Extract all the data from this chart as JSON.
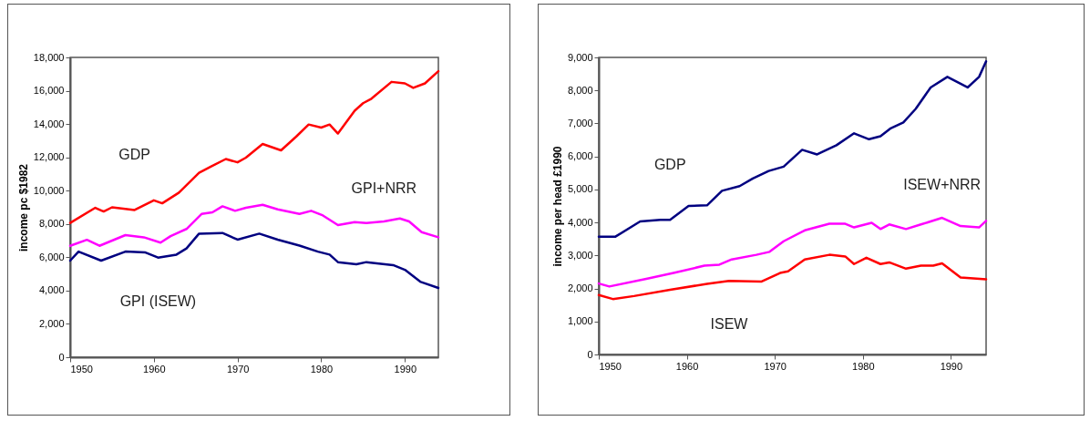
{
  "chart_data": [
    {
      "type": "line",
      "ylabel": "income pc $1982",
      "xlim": [
        1950,
        1994
      ],
      "xticks": [
        1950,
        1960,
        1970,
        1980,
        1990
      ],
      "ylim": [
        0,
        18000
      ],
      "yticks": [
        0,
        {
          "value": 2000,
          "label": "2,000"
        },
        {
          "value": 4000,
          "label": "4,000"
        },
        {
          "value": 6000,
          "label": "6,000"
        },
        {
          "value": 8000,
          "label": "8,000"
        },
        {
          "value": 10000,
          "label": "10,000"
        },
        {
          "value": 12000,
          "label": "12,000"
        },
        {
          "value": 14000,
          "label": "14,000"
        },
        {
          "value": 16000,
          "label": "16,000"
        },
        {
          "value": 18000,
          "label": "18,000"
        }
      ],
      "grid": false,
      "legend": false,
      "series": [
        {
          "name": "GDP",
          "color": "#ff0000",
          "x": [
            1950,
            1953,
            1954,
            1955,
            1957.7,
            1960,
            1961,
            1963,
            1965.4,
            1966.8,
            1968.6,
            1970,
            1971,
            1973,
            1975.2,
            1977,
            1978.5,
            1980,
            1981,
            1982,
            1984,
            1985,
            1986,
            1988.4,
            1990,
            1991,
            1992.4,
            1994
          ],
          "values": [
            8060,
            8970,
            8750,
            9000,
            8840,
            9420,
            9240,
            9880,
            11070,
            11440,
            11900,
            11700,
            11980,
            12800,
            12420,
            13240,
            13970,
            13790,
            13970,
            13430,
            14800,
            15250,
            15520,
            16530,
            16440,
            16170,
            16440,
            17170
          ]
        },
        {
          "name": "GPI+NRR",
          "color": "#ff00ff",
          "x": [
            1950,
            1952,
            1953.5,
            1956.6,
            1958.8,
            1960.8,
            1962,
            1963.9,
            1965.7,
            1967,
            1968.2,
            1969.7,
            1971,
            1973,
            1974.8,
            1977.4,
            1978.8,
            1980.2,
            1982,
            1984,
            1985.4,
            1987.5,
            1989.4,
            1990.5,
            1992,
            1994
          ],
          "values": [
            6690,
            7050,
            6690,
            7330,
            7200,
            6880,
            7270,
            7700,
            8600,
            8700,
            9060,
            8790,
            8970,
            9150,
            8880,
            8600,
            8790,
            8510,
            7930,
            8110,
            8060,
            8150,
            8330,
            8150,
            7510,
            7200
          ]
        },
        {
          "name": "GPI (ISEW)",
          "color": "#000080",
          "x": [
            1950,
            1951,
            1953.7,
            1956.6,
            1959,
            1960.5,
            1962.7,
            1963.9,
            1965.4,
            1968.2,
            1970,
            1972.6,
            1974.8,
            1977.4,
            1979.6,
            1981,
            1982,
            1984.2,
            1985.4,
            1988.6,
            1990,
            1991.9,
            1994
          ],
          "values": [
            5800,
            6340,
            5800,
            6340,
            6290,
            5980,
            6160,
            6530,
            7420,
            7460,
            7060,
            7420,
            7060,
            6700,
            6340,
            6160,
            5710,
            5580,
            5710,
            5530,
            5250,
            4520,
            4160
          ]
        }
      ]
    },
    {
      "type": "line",
      "ylabel": "income per head £1990",
      "xlim": [
        1950,
        1994
      ],
      "xticks": [
        1950,
        1960,
        1970,
        1980,
        1990
      ],
      "ylim": [
        0,
        9000
      ],
      "yticks": [
        0,
        {
          "value": 1000,
          "label": "1,000"
        },
        {
          "value": 2000,
          "label": "2,000"
        },
        {
          "value": 3000,
          "label": "3,000"
        },
        {
          "value": 4000,
          "label": "4,000"
        },
        {
          "value": 5000,
          "label": "5,000"
        },
        {
          "value": 6000,
          "label": "6,000"
        },
        {
          "value": 7000,
          "label": "7,000"
        },
        {
          "value": 8000,
          "label": "8,000"
        },
        {
          "value": 9000,
          "label": "9,000"
        }
      ],
      "grid": false,
      "legend": false,
      "series": [
        {
          "name": "GDP",
          "color": "#000080",
          "x": [
            1950,
            1951.9,
            1954.7,
            1957,
            1958.1,
            1960.2,
            1962.3,
            1964,
            1966,
            1967.5,
            1969.3,
            1971,
            1973.1,
            1974.8,
            1977,
            1979,
            1980.7,
            1982,
            1983.1,
            1984.6,
            1986,
            1987.7,
            1989.6,
            1991.9,
            1993.2,
            1994
          ],
          "values": [
            3570,
            3570,
            4030,
            4080,
            4080,
            4500,
            4520,
            4960,
            5100,
            5330,
            5560,
            5690,
            6200,
            6060,
            6340,
            6700,
            6520,
            6610,
            6840,
            7030,
            7440,
            8090,
            8410,
            8090,
            8410,
            8880
          ]
        },
        {
          "name": "ISEW+NRR",
          "color": "#ff00ff",
          "x": [
            1950,
            1951.2,
            1955.4,
            1958.5,
            1962,
            1963.7,
            1965.1,
            1967.9,
            1969.4,
            1971,
            1973.4,
            1976.2,
            1978,
            1979,
            1981,
            1982,
            1983,
            1984.9,
            1986.6,
            1989,
            1991.1,
            1993.2,
            1994
          ],
          "values": [
            2150,
            2060,
            2290,
            2470,
            2690,
            2720,
            2880,
            3020,
            3110,
            3430,
            3760,
            3960,
            3960,
            3850,
            3990,
            3800,
            3940,
            3800,
            3940,
            4140,
            3890,
            3850,
            4050
          ]
        },
        {
          "name": "ISEW",
          "color": "#ff0000",
          "x": [
            1950,
            1951.6,
            1954,
            1958.1,
            1962.3,
            1964.8,
            1968.5,
            1970.6,
            1971.5,
            1973.4,
            1976.2,
            1978,
            1979,
            1980.4,
            1982,
            1983,
            1984.9,
            1986.6,
            1988,
            1989,
            1991.1,
            1994
          ],
          "values": [
            1800,
            1680,
            1770,
            1960,
            2140,
            2230,
            2210,
            2470,
            2520,
            2880,
            3020,
            2970,
            2740,
            2930,
            2740,
            2790,
            2600,
            2690,
            2690,
            2760,
            2330,
            2280
          ]
        }
      ]
    }
  ]
}
